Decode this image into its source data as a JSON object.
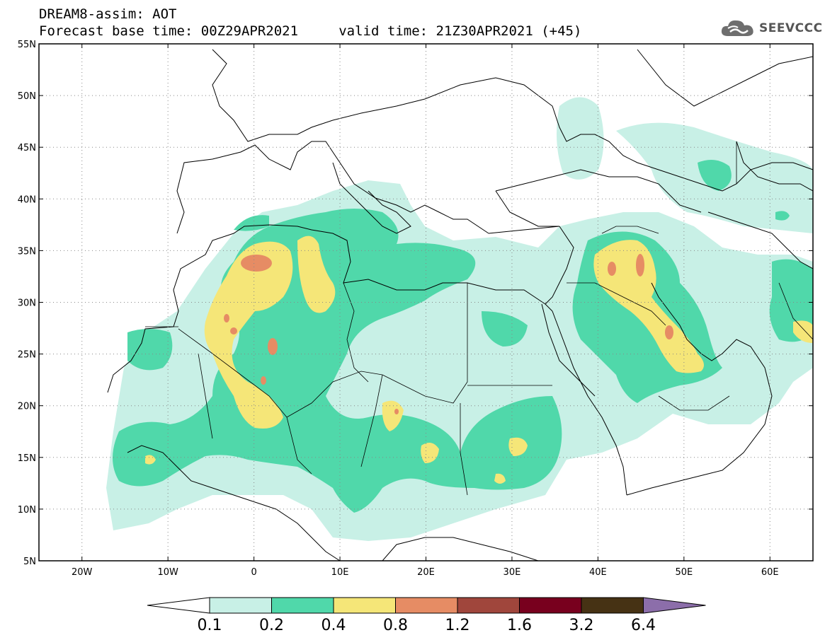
{
  "title": {
    "line1": "DREAM8-assim: AOT",
    "line2": "Forecast base time: 00Z29APR2021     valid time: 21Z30APR2021 (+45)"
  },
  "logo": {
    "text": "SEEVCCC",
    "icon": "cloud-icon"
  },
  "map": {
    "lon_range": [
      -25,
      65
    ],
    "lat_range": [
      5,
      55
    ],
    "lon_ticks": [
      {
        "value": -20,
        "label": "20W"
      },
      {
        "value": -10,
        "label": "10W"
      },
      {
        "value": 0,
        "label": "0"
      },
      {
        "value": 10,
        "label": "10E"
      },
      {
        "value": 20,
        "label": "20E"
      },
      {
        "value": 30,
        "label": "30E"
      },
      {
        "value": 40,
        "label": "40E"
      },
      {
        "value": 50,
        "label": "50E"
      },
      {
        "value": 60,
        "label": "60E"
      }
    ],
    "lat_ticks": [
      {
        "value": 55,
        "label": "55N"
      },
      {
        "value": 50,
        "label": "50N"
      },
      {
        "value": 45,
        "label": "45N"
      },
      {
        "value": 40,
        "label": "40N"
      },
      {
        "value": 35,
        "label": "35N"
      },
      {
        "value": 30,
        "label": "30N"
      },
      {
        "value": 25,
        "label": "25N"
      },
      {
        "value": 20,
        "label": "20N"
      },
      {
        "value": 15,
        "label": "15N"
      },
      {
        "value": 10,
        "label": "10N"
      },
      {
        "value": 5,
        "label": "5N"
      }
    ],
    "gridlines": "dotted",
    "field": "AOT"
  },
  "colorbar": {
    "levels": [
      "0.1",
      "0.2",
      "0.4",
      "0.8",
      "1.2",
      "1.6",
      "3.2",
      "6.4"
    ],
    "colors": [
      "#ffffff",
      "#c8f0e6",
      "#50d8aa",
      "#f5e678",
      "#e68c64",
      "#a0463c",
      "#78001e",
      "#463214",
      "#8c6eaa"
    ],
    "extend": "both"
  }
}
